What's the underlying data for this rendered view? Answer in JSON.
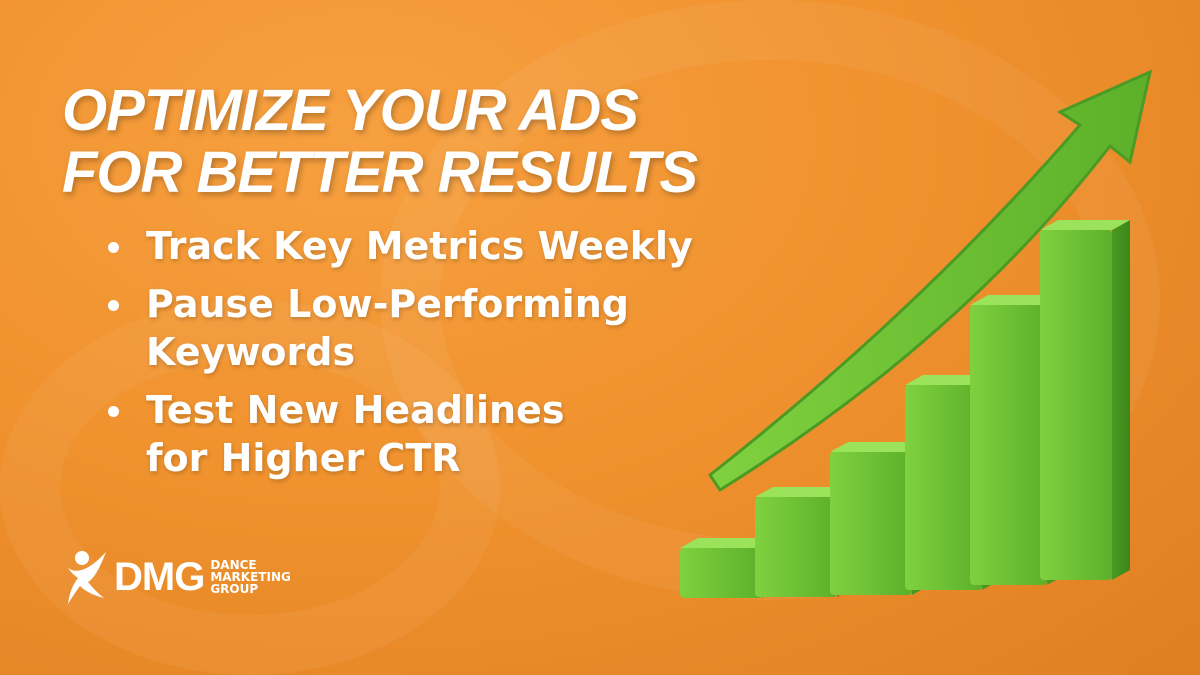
{
  "headline": {
    "line1": "OPTIMIZE YOUR ADS",
    "line2": "FOR BETTER RESULTS"
  },
  "bullets": [
    {
      "line1": "Track Key Metrics Weekly"
    },
    {
      "line1": "Pause Low-Performing",
      "line2": "Keywords"
    },
    {
      "line1": "Test New Headlines",
      "line2": "for Higher CTR"
    }
  ],
  "logo": {
    "mark": "DMG",
    "line1": "DANCE",
    "line2": "MARKETING",
    "line3": "GROUP"
  },
  "colors": {
    "background": "#f0922e",
    "bar_green": "#6cc334",
    "text": "#ffffff"
  },
  "illustration": {
    "type": "rising bar chart with upward arrow",
    "icon": "growth-chart-icon"
  }
}
